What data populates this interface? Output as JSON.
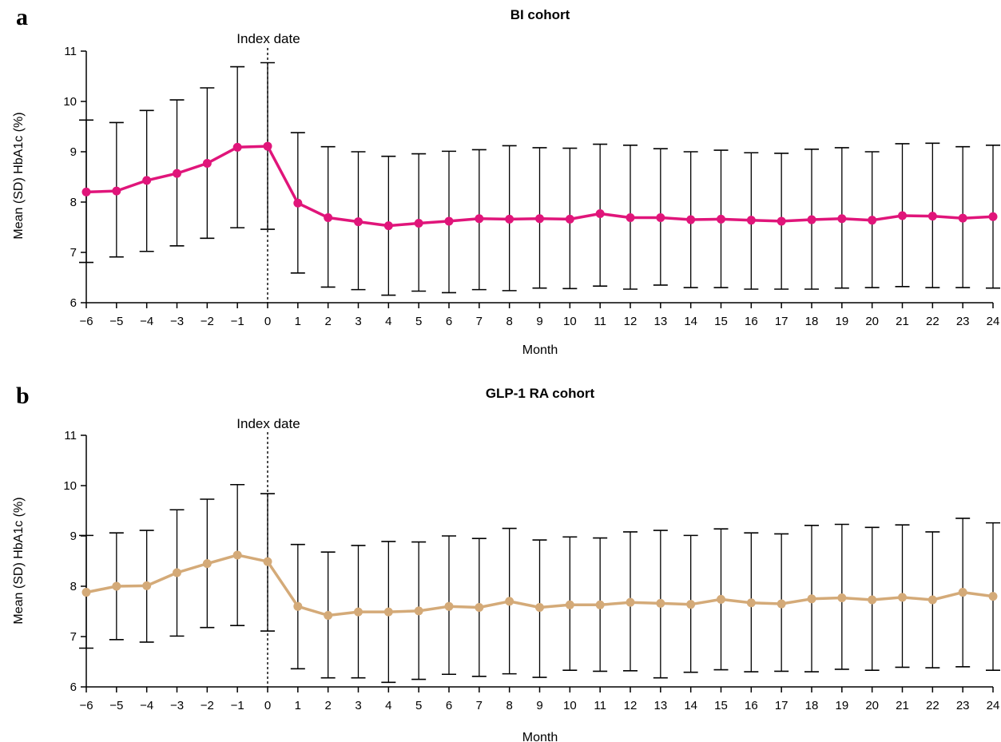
{
  "chart_data": [
    {
      "type": "line",
      "panel_letter": "a",
      "title": "BI cohort",
      "xlabel": "Month",
      "ylabel": "Mean (SD) HbA1c (%)",
      "annotation": "Index date",
      "annotation_x": 0,
      "xlim": [
        -6,
        24
      ],
      "ylim": [
        6,
        11
      ],
      "yticks": [
        6,
        7,
        8,
        9,
        10,
        11
      ],
      "grid": false,
      "color": "#e0157a",
      "x": [
        -6,
        -5,
        -4,
        -3,
        -2,
        -1,
        0,
        1,
        2,
        3,
        4,
        5,
        6,
        7,
        8,
        9,
        10,
        11,
        12,
        13,
        14,
        15,
        16,
        17,
        18,
        19,
        20,
        21,
        22,
        23,
        24
      ],
      "mean": [
        8.2,
        8.22,
        8.43,
        8.57,
        8.77,
        9.09,
        9.11,
        7.98,
        7.69,
        7.61,
        7.53,
        7.58,
        7.62,
        7.67,
        7.66,
        7.67,
        7.66,
        7.77,
        7.69,
        7.69,
        7.65,
        7.66,
        7.64,
        7.62,
        7.65,
        7.67,
        7.64,
        7.73,
        7.72,
        7.68,
        7.71
      ],
      "sd_upper": [
        9.63,
        9.58,
        9.82,
        10.03,
        10.27,
        10.69,
        10.77,
        9.38,
        9.1,
        9.0,
        8.91,
        8.96,
        9.01,
        9.04,
        9.12,
        9.08,
        9.07,
        9.15,
        9.13,
        9.06,
        9.0,
        9.03,
        8.98,
        8.97,
        9.05,
        9.08,
        9.0,
        9.16,
        9.17,
        9.1,
        9.13
      ],
      "sd_lower": [
        6.8,
        6.91,
        7.02,
        7.13,
        7.28,
        7.49,
        7.46,
        6.59,
        6.31,
        6.26,
        6.15,
        6.23,
        6.2,
        6.26,
        6.24,
        6.29,
        6.28,
        6.33,
        6.27,
        6.35,
        6.3,
        6.3,
        6.27,
        6.27,
        6.27,
        6.29,
        6.3,
        6.32,
        6.3,
        6.3,
        6.29
      ]
    },
    {
      "type": "line",
      "panel_letter": "b",
      "title": "GLP-1 RA cohort",
      "xlabel": "Month",
      "ylabel": "Mean (SD) HbA1c (%)",
      "annotation": "Index date",
      "annotation_x": 0,
      "xlim": [
        -6,
        24
      ],
      "ylim": [
        6,
        11
      ],
      "yticks": [
        6,
        7,
        8,
        9,
        10,
        11
      ],
      "grid": false,
      "color": "#d4aa78",
      "x": [
        -6,
        -5,
        -4,
        -3,
        -2,
        -1,
        0,
        1,
        2,
        3,
        4,
        5,
        6,
        7,
        8,
        9,
        10,
        11,
        12,
        13,
        14,
        15,
        16,
        17,
        18,
        19,
        20,
        21,
        22,
        23,
        24
      ],
      "mean": [
        7.88,
        8.0,
        8.01,
        8.27,
        8.45,
        8.62,
        8.49,
        7.6,
        7.42,
        7.49,
        7.49,
        7.51,
        7.6,
        7.58,
        7.7,
        7.58,
        7.63,
        7.63,
        7.68,
        7.66,
        7.64,
        7.74,
        7.67,
        7.65,
        7.75,
        7.77,
        7.73,
        7.78,
        7.73,
        7.88,
        7.8
      ],
      "sd_upper": [
        9.01,
        9.06,
        9.11,
        9.52,
        9.73,
        10.02,
        9.84,
        8.83,
        8.68,
        8.81,
        8.89,
        8.88,
        9.0,
        8.95,
        9.15,
        8.92,
        8.98,
        8.96,
        9.08,
        9.11,
        9.01,
        9.14,
        9.06,
        9.04,
        9.21,
        9.23,
        9.17,
        9.22,
        9.08,
        9.35,
        9.26
      ],
      "sd_lower": [
        6.77,
        6.94,
        6.89,
        7.01,
        7.18,
        7.22,
        7.11,
        6.36,
        6.18,
        6.18,
        6.09,
        6.15,
        6.25,
        6.21,
        6.26,
        6.19,
        6.33,
        6.31,
        6.32,
        6.18,
        6.29,
        6.34,
        6.3,
        6.31,
        6.3,
        6.35,
        6.33,
        6.39,
        6.38,
        6.4,
        6.33
      ]
    }
  ]
}
